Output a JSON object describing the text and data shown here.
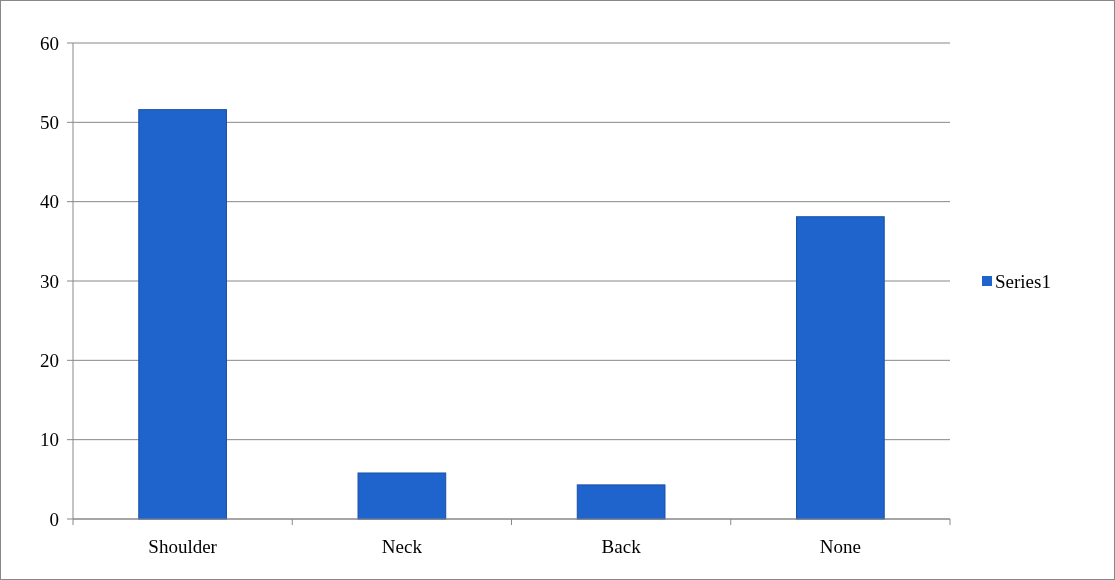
{
  "chart_data": {
    "type": "bar",
    "categories": [
      "Shoulder",
      "Neck",
      "Back",
      "None"
    ],
    "series": [
      {
        "name": "Series1",
        "color": "#1f63cc",
        "values": [
          51.6,
          5.8,
          4.3,
          38.1
        ]
      }
    ],
    "ylim": [
      0,
      60
    ],
    "yticks": [
      0,
      10,
      20,
      30,
      40,
      50,
      60
    ],
    "grid": "y",
    "legend": "right"
  }
}
